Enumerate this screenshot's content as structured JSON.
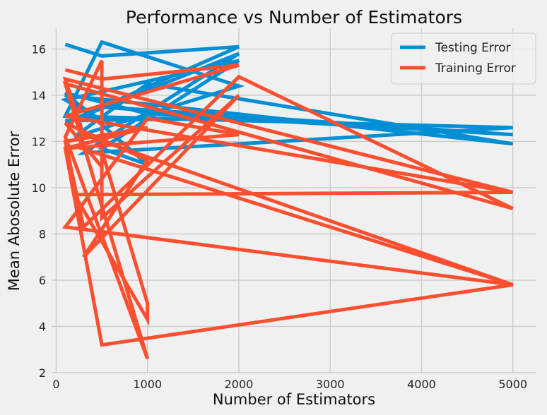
{
  "chart_data": {
    "type": "line",
    "title": "Performance vs Number of Estimators",
    "xlabel": "Number of Estimators",
    "ylabel": "Mean Abosolute Error",
    "xlim": [
      -50,
      5250
    ],
    "ylim": [
      2,
      16.9
    ],
    "xticks": [
      0,
      1000,
      2000,
      3000,
      4000,
      5000
    ],
    "yticks": [
      2,
      4,
      6,
      8,
      10,
      12,
      14,
      16
    ],
    "grid": true,
    "legend_position": "top-right",
    "colors": {
      "background": "#f0f0f0",
      "grid": "#cbcbcb"
    },
    "series": [
      {
        "name": "Testing Error",
        "color": "#008fd5",
        "x": [
          100,
          500,
          2000,
          100,
          2000,
          300,
          5000,
          100,
          500,
          2000,
          200,
          1000,
          5000,
          100,
          500,
          100,
          2000,
          500,
          1000,
          100,
          1000,
          5000,
          500,
          2000,
          100
        ],
        "y": [
          16.2,
          15.7,
          16.1,
          12.8,
          15.8,
          11.5,
          12.6,
          13.1,
          16.3,
          14.4,
          12.2,
          14.5,
          11.9,
          14.0,
          12.9,
          13.8,
          15.5,
          11.7,
          11.0,
          14.1,
          13.2,
          12.3,
          13.5,
          13.0,
          12.9
        ]
      },
      {
        "name": "Training Error",
        "color": "#fc4f30",
        "x": [
          100,
          500,
          2000,
          100,
          5000,
          100,
          300,
          5000,
          100,
          1000,
          2000,
          100,
          500,
          5000,
          200,
          1000,
          100,
          300,
          2000,
          5000,
          100,
          1000,
          100,
          500,
          500,
          2000,
          300,
          1000,
          100,
          500,
          500,
          1000,
          1000,
          200,
          5000
        ],
        "y": [
          15.1,
          14.7,
          15.3,
          13.1,
          9.8,
          14.7,
          12.3,
          5.8,
          8.3,
          13.0,
          12.3,
          11.7,
          3.2,
          5.8,
          11.8,
          12.6,
          12.0,
          8.3,
          14.8,
          9.1,
          14.5,
          2.6,
          12.2,
          15.5,
          8.7,
          14.0,
          7.0,
          11.2,
          12.8,
          10.9,
          11.6,
          5.0,
          4.3,
          9.7,
          9.8
        ]
      }
    ]
  }
}
